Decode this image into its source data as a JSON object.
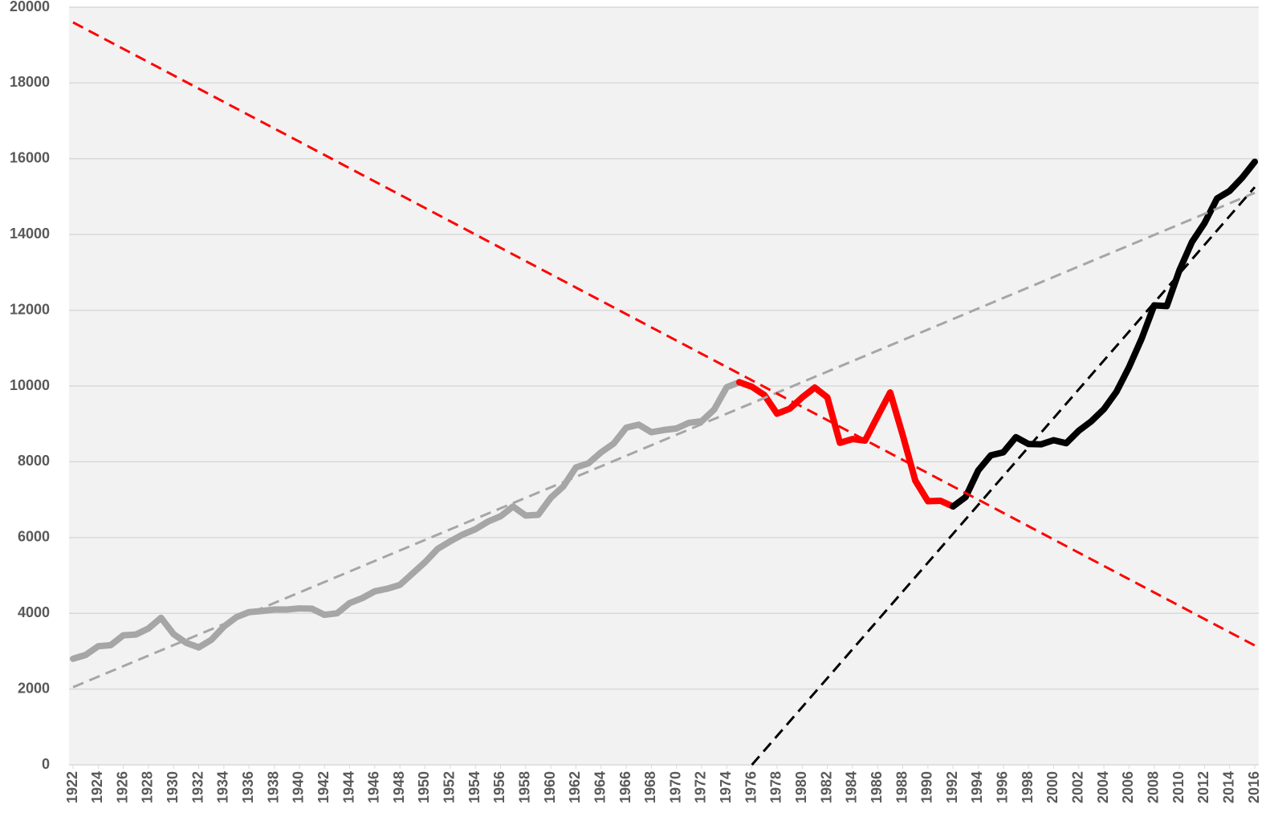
{
  "chart_data": {
    "type": "line",
    "xlim": [
      1922,
      2016
    ],
    "xticks": [
      1922,
      1924,
      1926,
      1928,
      1930,
      1932,
      1934,
      1936,
      1938,
      1940,
      1942,
      1944,
      1946,
      1948,
      1950,
      1952,
      1954,
      1956,
      1958,
      1960,
      1962,
      1964,
      1966,
      1968,
      1970,
      1972,
      1974,
      1976,
      1978,
      1980,
      1982,
      1984,
      1986,
      1988,
      1990,
      1992,
      1994,
      1996,
      1998,
      2000,
      2002,
      2004,
      2006,
      2008,
      2010,
      2012,
      2014,
      2016
    ],
    "ylim": [
      0,
      20000
    ],
    "yticks": [
      0,
      2000,
      4000,
      6000,
      8000,
      10000,
      12000,
      14000,
      16000,
      18000,
      20000
    ],
    "grid": true,
    "series": [
      {
        "color": "#a6a6a6",
        "width": 8,
        "dashed": false,
        "x": [
          1922,
          1923,
          1924,
          1925,
          1926,
          1927,
          1928,
          1929,
          1930,
          1931,
          1932,
          1933,
          1934,
          1935,
          1936,
          1937,
          1938,
          1939,
          1940,
          1941,
          1942,
          1943,
          1944,
          1945,
          1946,
          1947,
          1948,
          1949,
          1950,
          1951,
          1952,
          1953,
          1954,
          1955,
          1956,
          1957,
          1958,
          1959,
          1960,
          1961,
          1962,
          1963,
          1964,
          1965,
          1966,
          1967,
          1968,
          1969,
          1970,
          1971,
          1972,
          1973,
          1974,
          1975
        ],
        "values": [
          2800,
          2900,
          3130,
          3160,
          3420,
          3440,
          3600,
          3880,
          3450,
          3220,
          3100,
          3300,
          3650,
          3900,
          4030,
          4060,
          4100,
          4100,
          4130,
          4120,
          3960,
          4000,
          4270,
          4400,
          4580,
          4650,
          4750,
          5050,
          5350,
          5700,
          5900,
          6080,
          6220,
          6420,
          6560,
          6820,
          6580,
          6600,
          7050,
          7350,
          7850,
          7960,
          8250,
          8480,
          8900,
          8980,
          8780,
          8840,
          8880,
          9030,
          9070,
          9380,
          9970,
          10100
        ]
      },
      {
        "color": "#ff0000",
        "width": 8,
        "dashed": false,
        "x": [
          1975,
          1976,
          1977,
          1978,
          1979,
          1980,
          1981,
          1982,
          1983,
          1984,
          1985,
          1986,
          1987,
          1988,
          1989,
          1990,
          1991,
          1992
        ],
        "values": [
          10100,
          9980,
          9760,
          9270,
          9400,
          9700,
          9960,
          9700,
          8500,
          8600,
          8560,
          9200,
          9830,
          8700,
          7500,
          6960,
          6970,
          6820
        ]
      },
      {
        "color": "#000000",
        "width": 8,
        "dashed": false,
        "x": [
          1992,
          1993,
          1994,
          1995,
          1996,
          1997,
          1998,
          1999,
          2000,
          2001,
          2002,
          2003,
          2004,
          2005,
          2006,
          2007,
          2008,
          2009,
          2010,
          2011,
          2012,
          2013,
          2014,
          2015,
          2016
        ],
        "values": [
          6820,
          7070,
          7770,
          8170,
          8250,
          8650,
          8470,
          8460,
          8570,
          8490,
          8820,
          9070,
          9390,
          9850,
          10500,
          11250,
          12130,
          12110,
          13050,
          13800,
          14300,
          14950,
          15150,
          15500,
          15920
        ]
      },
      {
        "color": "#a6a6a6",
        "width": 3,
        "dashed": true,
        "x": [
          1922,
          2016
        ],
        "values": [
          2050,
          15100
        ]
      },
      {
        "color": "#ff0000",
        "width": 3,
        "dashed": true,
        "x": [
          1922,
          2016
        ],
        "values": [
          19600,
          3150
        ]
      },
      {
        "color": "#000000",
        "width": 3,
        "dashed": true,
        "x": [
          1976,
          2016
        ],
        "values": [
          0,
          15250
        ]
      }
    ]
  }
}
